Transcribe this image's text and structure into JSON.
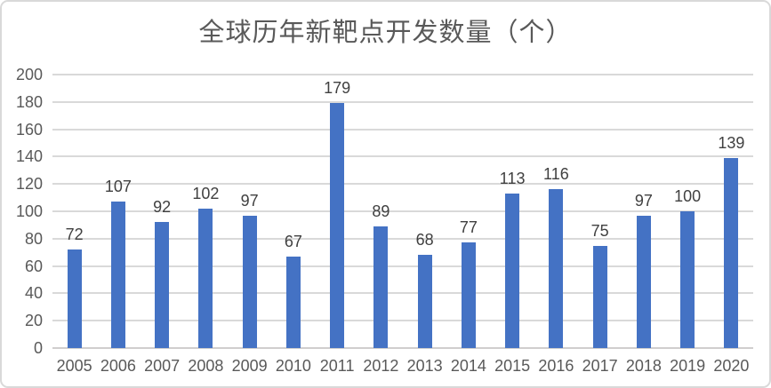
{
  "chart_data": {
    "type": "bar",
    "title": "全球历年新靶点开发数量（个）",
    "categories": [
      "2005",
      "2006",
      "2007",
      "2008",
      "2009",
      "2010",
      "2011",
      "2012",
      "2013",
      "2014",
      "2015",
      "2016",
      "2017",
      "2018",
      "2019",
      "2020"
    ],
    "values": [
      72,
      107,
      92,
      102,
      97,
      67,
      179,
      89,
      68,
      77,
      113,
      116,
      75,
      97,
      100,
      139
    ],
    "xlabel": "",
    "ylabel": "",
    "ylim": [
      0,
      200
    ],
    "ytick_step": 20,
    "ytick_labels": [
      "0",
      "20",
      "40",
      "60",
      "80",
      "100",
      "120",
      "140",
      "160",
      "180",
      "200"
    ],
    "grid": true,
    "legend": "none",
    "data_labels": true,
    "colors": {
      "bar": "#4472C4",
      "gridline": "#D9D9D9",
      "axis_line": "#D0CECE",
      "axis_text": "#595959",
      "data_label_text": "#404040",
      "title_text": "#595959",
      "border": "#D9D9D9",
      "background": "#FFFFFF"
    }
  }
}
